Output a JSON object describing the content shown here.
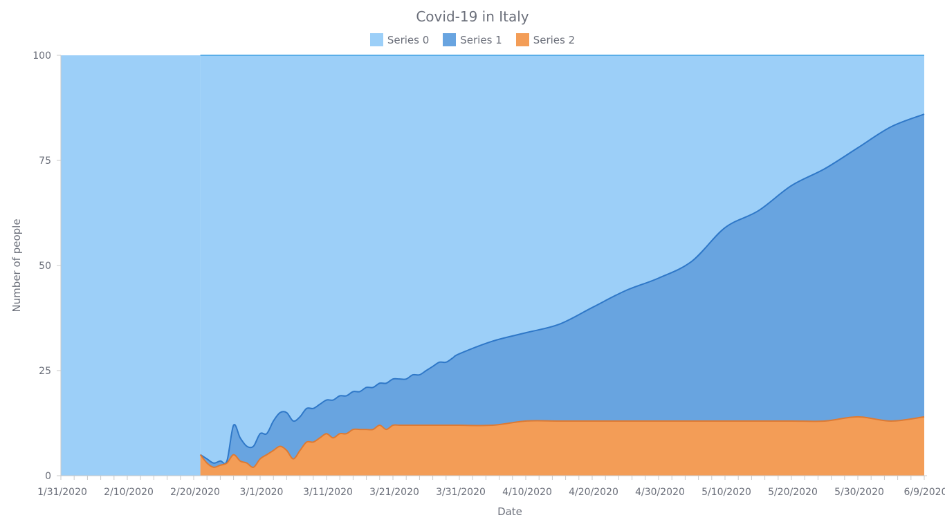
{
  "chart_data": {
    "type": "area",
    "stacked": "percent",
    "title": "Covid-19 in Italy",
    "xlabel": "Date",
    "ylabel": "Number of people",
    "ylim": [
      0,
      100
    ],
    "yticks": [
      0,
      25,
      50,
      75,
      100
    ],
    "xlim": [
      "1/31/2020",
      "6/9/2020"
    ],
    "xtick_labels": [
      "1/31/2020",
      "2/10/2020",
      "2/20/2020",
      "3/1/2020",
      "3/11/2020",
      "3/21/2020",
      "3/31/2020",
      "4/10/2020",
      "4/20/2020",
      "4/30/2020",
      "5/10/2020",
      "5/20/2020",
      "5/30/2020",
      "6/9/2020"
    ],
    "legend_position": "top-center",
    "grid": false,
    "x": [
      "2/21/2020",
      "2/22/2020",
      "2/23/2020",
      "2/24/2020",
      "2/25/2020",
      "2/26/2020",
      "2/27/2020",
      "2/28/2020",
      "2/29/2020",
      "3/1/2020",
      "3/2/2020",
      "3/3/2020",
      "3/4/2020",
      "3/5/2020",
      "3/6/2020",
      "3/7/2020",
      "3/8/2020",
      "3/9/2020",
      "3/10/2020",
      "3/11/2020",
      "3/12/2020",
      "3/13/2020",
      "3/14/2020",
      "3/15/2020",
      "3/16/2020",
      "3/17/2020",
      "3/18/2020",
      "3/19/2020",
      "3/20/2020",
      "3/21/2020",
      "3/22/2020",
      "3/23/2020",
      "3/24/2020",
      "3/25/2020",
      "3/26/2020",
      "3/27/2020",
      "3/28/2020",
      "3/29/2020",
      "3/30/2020",
      "3/31/2020",
      "4/5/2020",
      "4/10/2020",
      "4/15/2020",
      "4/20/2020",
      "4/25/2020",
      "4/30/2020",
      "5/5/2020",
      "5/10/2020",
      "5/15/2020",
      "5/20/2020",
      "5/25/2020",
      "5/30/2020",
      "6/4/2020",
      "6/9/2020"
    ],
    "series": [
      {
        "name": "Series 0",
        "color": "#9ccff8",
        "values": [
          95,
          96,
          97,
          96.5,
          96.5,
          88,
          91,
          93,
          93,
          90,
          90,
          87,
          85,
          85,
          87,
          86,
          84,
          84,
          83,
          82,
          82,
          81,
          81,
          80,
          80,
          79,
          79,
          78,
          78,
          77,
          77,
          77,
          76,
          76,
          75,
          74,
          73,
          73,
          72,
          71,
          68,
          66,
          64,
          60,
          56,
          53,
          49,
          41,
          37,
          31,
          27,
          22,
          17,
          14
        ]
      },
      {
        "name": "Series 1",
        "color": "#68a4e0",
        "values": [
          0,
          1,
          1,
          1,
          0.5,
          7,
          5.5,
          4,
          5,
          6,
          5,
          7,
          8,
          9,
          9,
          8,
          8,
          8,
          8,
          8,
          9,
          9,
          9,
          9,
          9,
          10,
          10,
          10,
          11,
          11,
          11,
          11,
          12,
          12,
          13,
          14,
          15,
          15,
          16,
          17,
          20,
          21,
          23,
          27,
          31,
          34,
          38,
          46,
          50,
          56,
          60,
          64,
          70,
          72
        ]
      },
      {
        "name": "Series 2",
        "color": "#f39d57",
        "values": [
          5,
          3,
          2,
          2.5,
          3,
          5,
          3.5,
          3,
          2,
          4,
          5,
          6,
          7,
          6,
          4,
          6,
          8,
          8,
          9,
          10,
          9,
          10,
          10,
          11,
          11,
          11,
          11,
          12,
          11,
          12,
          12,
          12,
          12,
          12,
          12,
          12,
          12,
          12,
          12,
          12,
          12,
          13,
          13,
          13,
          13,
          13,
          13,
          13,
          13,
          13,
          13,
          14,
          13,
          14
        ]
      }
    ]
  }
}
